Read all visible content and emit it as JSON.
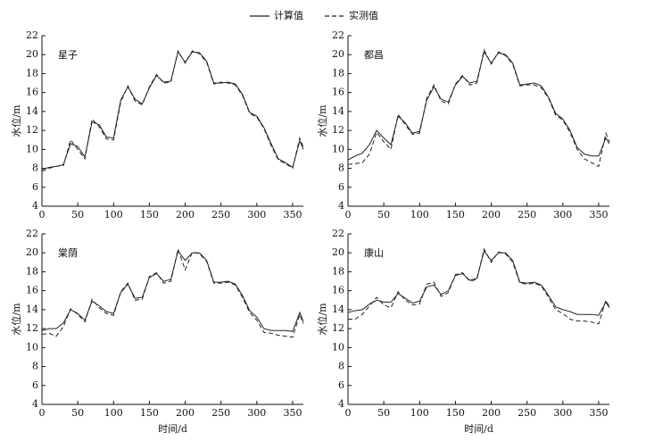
{
  "chart_data": [
    {
      "type": "line",
      "title": "星子",
      "ylabel": "水位/m",
      "xlim": [
        0,
        365
      ],
      "ylim": [
        4,
        22
      ],
      "xticks": [
        0,
        50,
        100,
        150,
        200,
        250,
        300,
        350
      ],
      "yticks": [
        4,
        6,
        8,
        10,
        12,
        14,
        16,
        18,
        20,
        22
      ],
      "x": [
        0,
        10,
        20,
        30,
        40,
        50,
        60,
        70,
        80,
        90,
        100,
        110,
        120,
        130,
        140,
        150,
        160,
        170,
        180,
        190,
        200,
        210,
        220,
        230,
        240,
        250,
        260,
        270,
        280,
        290,
        300,
        310,
        320,
        330,
        340,
        350,
        360,
        365
      ],
      "series": [
        {
          "name": "计算值",
          "color": "#222222",
          "style": "solid",
          "values": [
            7.9,
            8.1,
            8.2,
            8.4,
            10.6,
            10.3,
            9.2,
            12.9,
            12.6,
            11.3,
            11.2,
            15.2,
            16.6,
            15.3,
            14.8,
            16.5,
            17.8,
            17.1,
            17.2,
            20.3,
            19.2,
            20.3,
            20.2,
            19.3,
            17.0,
            17.0,
            17.1,
            16.9,
            15.8,
            13.9,
            13.5,
            12.3,
            10.6,
            9.0,
            8.6,
            8.1,
            10.9,
            10.0
          ]
        },
        {
          "name": "实测值",
          "color": "#222222",
          "style": "dashed",
          "values": [
            7.7,
            8.0,
            8.2,
            8.3,
            11.0,
            10.0,
            9.0,
            13.2,
            12.4,
            11.1,
            11.0,
            15.0,
            16.7,
            15.1,
            14.7,
            16.6,
            17.9,
            17.0,
            17.1,
            20.4,
            19.1,
            20.4,
            20.1,
            19.2,
            16.9,
            17.1,
            17.0,
            16.8,
            15.7,
            13.8,
            13.4,
            12.2,
            10.4,
            8.9,
            8.5,
            8.0,
            11.2,
            10.2
          ]
        }
      ]
    },
    {
      "type": "line",
      "title": "都昌",
      "ylabel": "水位/m",
      "xlim": [
        0,
        365
      ],
      "ylim": [
        4,
        22
      ],
      "xticks": [
        0,
        50,
        100,
        150,
        200,
        250,
        300,
        350
      ],
      "yticks": [
        4,
        6,
        8,
        10,
        12,
        14,
        16,
        18,
        20,
        22
      ],
      "x": [
        0,
        10,
        20,
        30,
        40,
        50,
        60,
        70,
        80,
        90,
        100,
        110,
        120,
        130,
        140,
        150,
        160,
        170,
        180,
        190,
        200,
        210,
        220,
        230,
        240,
        250,
        260,
        270,
        280,
        290,
        300,
        310,
        320,
        330,
        340,
        350,
        360,
        365
      ],
      "series": [
        {
          "color": "#222222",
          "style": "solid",
          "values": [
            8.9,
            9.3,
            9.6,
            10.5,
            12.0,
            11.2,
            10.5,
            13.5,
            12.8,
            11.7,
            11.9,
            15.2,
            16.6,
            15.3,
            15.0,
            16.8,
            17.7,
            17.0,
            17.2,
            20.3,
            19.1,
            20.2,
            20.0,
            19.1,
            16.8,
            16.9,
            17.0,
            16.7,
            15.5,
            13.8,
            13.2,
            12.0,
            10.2,
            9.5,
            9.3,
            9.3,
            11.2,
            10.6
          ]
        },
        {
          "color": "#222222",
          "style": "dashed",
          "values": [
            8.4,
            8.5,
            8.6,
            9.5,
            11.8,
            10.8,
            10.0,
            13.7,
            12.6,
            11.6,
            11.7,
            15.4,
            16.8,
            15.1,
            14.8,
            16.9,
            17.8,
            16.8,
            17.0,
            20.5,
            19.0,
            20.3,
            19.9,
            19.0,
            16.7,
            16.8,
            16.8,
            16.5,
            15.4,
            13.6,
            13.1,
            11.8,
            10.0,
            9.0,
            8.6,
            8.2,
            11.7,
            10.8
          ]
        }
      ]
    },
    {
      "type": "line",
      "title": "棠荫",
      "ylabel": "水位/m",
      "xlabel": "时间/d",
      "xlim": [
        0,
        365
      ],
      "ylim": [
        4,
        22
      ],
      "xticks": [
        0,
        50,
        100,
        150,
        200,
        250,
        300,
        350
      ],
      "yticks": [
        4,
        6,
        8,
        10,
        12,
        14,
        16,
        18,
        20,
        22
      ],
      "x": [
        0,
        10,
        20,
        30,
        40,
        50,
        60,
        70,
        80,
        90,
        100,
        110,
        120,
        130,
        140,
        150,
        160,
        170,
        180,
        190,
        200,
        210,
        220,
        230,
        240,
        250,
        260,
        270,
        280,
        290,
        300,
        310,
        320,
        330,
        340,
        350,
        360,
        365
      ],
      "series": [
        {
          "color": "#222222",
          "style": "solid",
          "values": [
            11.8,
            12.0,
            12.0,
            12.6,
            14.0,
            13.6,
            12.9,
            14.9,
            14.4,
            13.8,
            13.6,
            15.8,
            16.7,
            15.2,
            15.3,
            17.4,
            17.8,
            17.0,
            17.2,
            20.2,
            19.2,
            20.0,
            20.0,
            19.2,
            16.9,
            16.9,
            17.0,
            16.7,
            15.5,
            13.9,
            13.2,
            12.0,
            11.8,
            11.8,
            11.8,
            11.7,
            13.7,
            12.7
          ]
        },
        {
          "color": "#222222",
          "style": "dashed",
          "values": [
            11.4,
            11.5,
            11.2,
            12.2,
            14.1,
            13.5,
            12.7,
            15.1,
            14.2,
            13.6,
            13.4,
            15.9,
            16.8,
            15.0,
            15.1,
            17.5,
            17.9,
            16.8,
            17.0,
            20.4,
            18.2,
            20.1,
            19.9,
            19.1,
            16.8,
            16.8,
            16.9,
            16.6,
            15.3,
            13.7,
            12.9,
            11.6,
            11.5,
            11.3,
            11.2,
            11.1,
            13.5,
            12.5
          ]
        }
      ]
    },
    {
      "type": "line",
      "title": "康山",
      "ylabel": "水位/m",
      "xlabel": "时间/d",
      "xlim": [
        0,
        365
      ],
      "ylim": [
        4,
        22
      ],
      "xticks": [
        0,
        50,
        100,
        150,
        200,
        250,
        300,
        350
      ],
      "yticks": [
        4,
        6,
        8,
        10,
        12,
        14,
        16,
        18,
        20,
        22
      ],
      "x": [
        0,
        10,
        20,
        30,
        40,
        50,
        60,
        70,
        80,
        90,
        100,
        110,
        120,
        130,
        140,
        150,
        160,
        170,
        180,
        190,
        200,
        210,
        220,
        230,
        240,
        250,
        260,
        270,
        280,
        290,
        300,
        310,
        320,
        330,
        340,
        350,
        360,
        365
      ],
      "series": [
        {
          "color": "#222222",
          "style": "solid",
          "values": [
            13.7,
            13.9,
            14.0,
            14.6,
            15.0,
            14.8,
            14.8,
            15.7,
            15.2,
            14.7,
            14.9,
            16.4,
            16.6,
            15.6,
            16.0,
            17.6,
            17.8,
            17.1,
            17.3,
            20.2,
            19.2,
            20.0,
            20.0,
            19.2,
            16.9,
            16.8,
            16.9,
            16.6,
            15.5,
            14.3,
            14.0,
            13.8,
            13.5,
            13.5,
            13.5,
            13.4,
            14.8,
            14.2
          ]
        },
        {
          "color": "#222222",
          "style": "dashed",
          "values": [
            13.0,
            13.0,
            13.5,
            14.4,
            15.3,
            14.5,
            14.2,
            15.9,
            15.0,
            14.5,
            14.6,
            16.7,
            16.9,
            15.4,
            15.8,
            17.7,
            17.9,
            17.0,
            17.2,
            20.4,
            19.0,
            20.1,
            19.9,
            19.0,
            16.8,
            16.7,
            16.8,
            16.5,
            15.3,
            14.0,
            13.6,
            13.0,
            12.8,
            12.8,
            12.7,
            12.5,
            15.0,
            14.3
          ]
        }
      ]
    }
  ]
}
